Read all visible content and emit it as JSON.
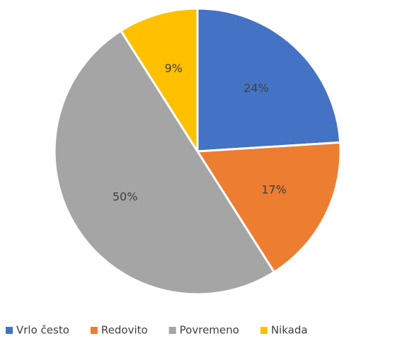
{
  "chart_data": {
    "type": "pie",
    "categories": [
      "Vrlo često",
      "Redovito",
      "Povremeno",
      "Nikada"
    ],
    "values": [
      24,
      17,
      50,
      9
    ],
    "value_labels": [
      "24%",
      "17%",
      "50%",
      "9%"
    ],
    "colors": [
      "#4472c4",
      "#ed7d31",
      "#a5a5a5",
      "#ffc000"
    ],
    "legend": "bottom"
  }
}
